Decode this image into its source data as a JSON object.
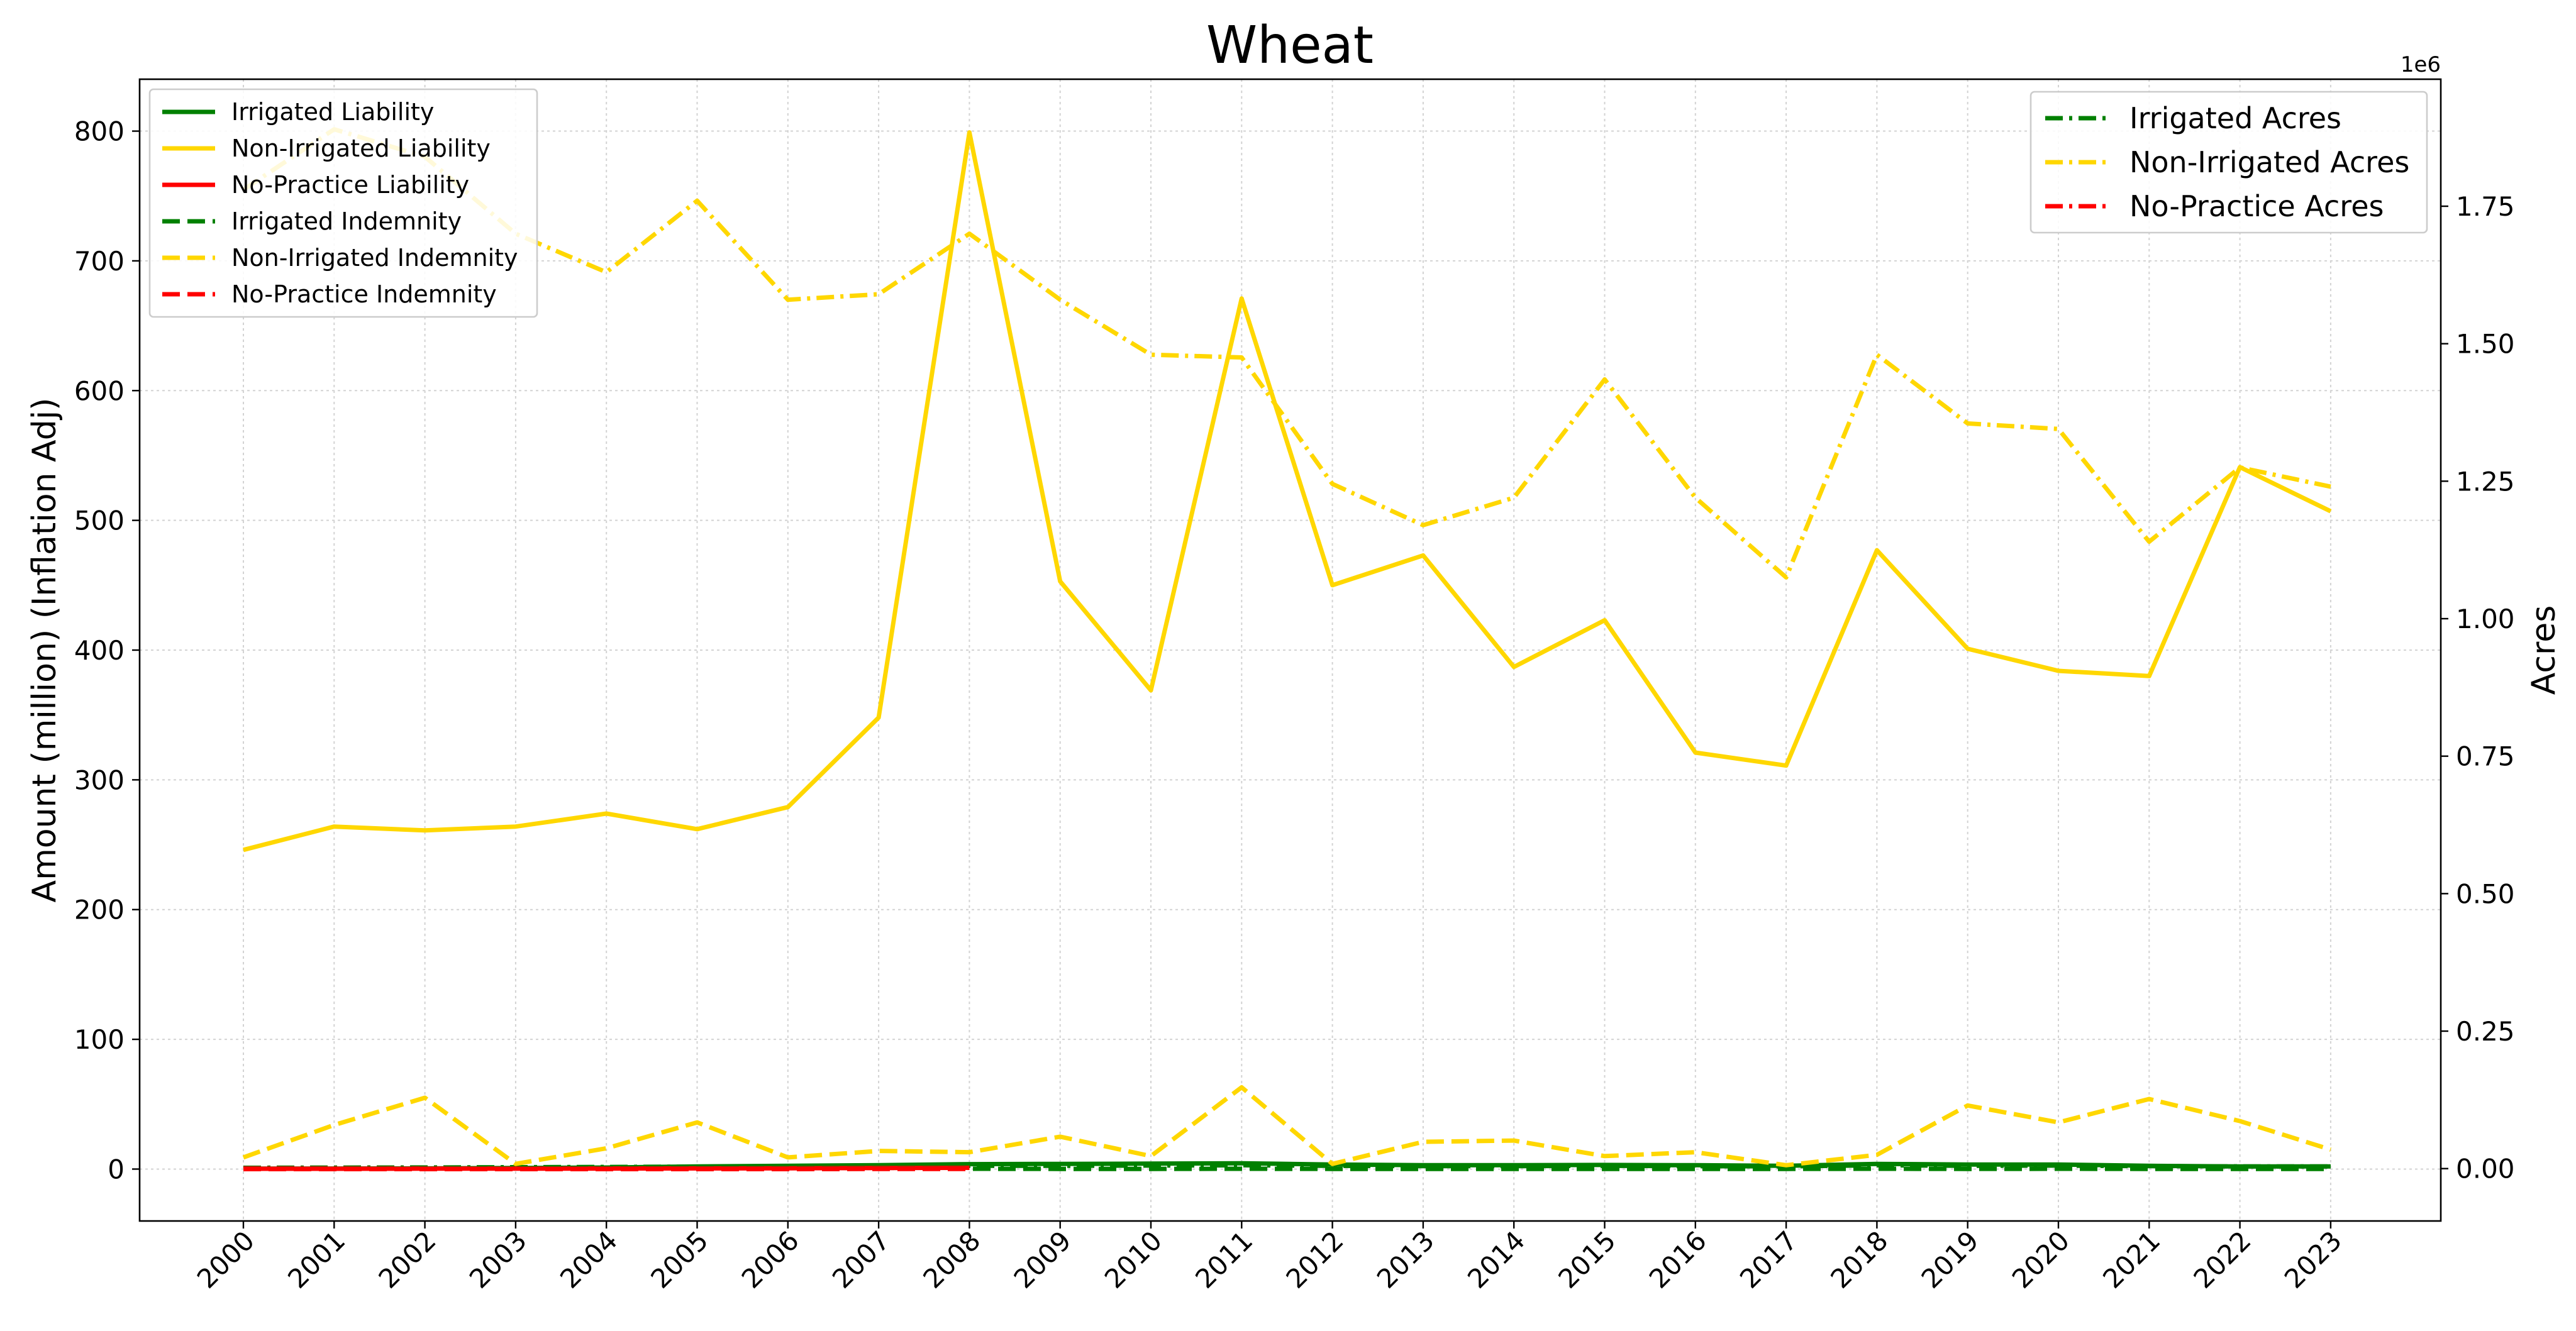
{
  "chart_data": {
    "type": "line",
    "title": "Wheat",
    "xlabel": "",
    "ylabel_left": "Amount (million) (Inflation Adj)",
    "ylabel_right": "Acres",
    "right_offset_label": "1e6",
    "categories": [
      "2000",
      "2001",
      "2002",
      "2003",
      "2004",
      "2005",
      "2006",
      "2007",
      "2008",
      "2009",
      "2010",
      "2011",
      "2012",
      "2013",
      "2014",
      "2015",
      "2016",
      "2017",
      "2018",
      "2019",
      "2020",
      "2021",
      "2022",
      "2023"
    ],
    "ylim_left": [
      -40,
      840
    ],
    "yticks_left": [
      0,
      100,
      200,
      300,
      400,
      500,
      600,
      700,
      800
    ],
    "ylim_right": [
      -95238,
      1980952
    ],
    "yticks_right": [
      0.0,
      250000,
      500000,
      750000,
      1000000,
      1250000,
      1500000,
      1750000
    ],
    "ytick_labels_right": [
      "0.00",
      "0.25",
      "0.50",
      "0.75",
      "1.00",
      "1.25",
      "1.50",
      "1.75"
    ],
    "grid": true,
    "legend_left_placement": "upper-left",
    "legend_right_placement": "upper-right",
    "colors": {
      "irrigated": "#008000",
      "non_irrigated": "#FFD700",
      "no_practice": "#FF0000"
    },
    "series_left": [
      {
        "name": "Irrigated Liability",
        "style": "solid",
        "color": "#008000",
        "values": [
          0.3,
          0.4,
          0.5,
          0.8,
          1.2,
          2.0,
          2.5,
          3.0,
          3.8,
          4.0,
          4.2,
          4.5,
          3.5,
          3.0,
          3.0,
          3.2,
          3.0,
          2.5,
          4.0,
          3.5,
          3.5,
          2.5,
          2.0,
          2.0
        ]
      },
      {
        "name": "Non-Irrigated Liability",
        "style": "solid",
        "color": "#FFD700",
        "values": [
          246,
          264,
          261,
          264,
          274,
          262,
          279,
          348,
          799,
          453,
          369,
          671,
          450,
          473,
          387,
          423,
          321,
          311,
          477,
          401,
          384,
          380,
          541,
          507
        ]
      },
      {
        "name": "No-Practice Liability",
        "style": "solid",
        "color": "#FF0000",
        "values": [
          0.2,
          0.2,
          0.3,
          0.3,
          0.4,
          0.5,
          0.6,
          0.8,
          1.0,
          null,
          null,
          null,
          null,
          null,
          null,
          null,
          null,
          null,
          null,
          null,
          null,
          null,
          null,
          null
        ]
      },
      {
        "name": "Irrigated Indemnity",
        "style": "dashed",
        "color": "#008000",
        "values": [
          0.0,
          0.0,
          0.1,
          0.1,
          0.1,
          0.1,
          0.1,
          0.2,
          0.2,
          0.1,
          0.1,
          0.2,
          0.1,
          0.1,
          0.1,
          0.1,
          0.1,
          0.1,
          0.2,
          0.1,
          0.2,
          0.1,
          0.1,
          0.1
        ]
      },
      {
        "name": "Non-Irrigated Indemnity",
        "style": "dashed",
        "color": "#FFD700",
        "values": [
          9,
          34,
          55,
          4,
          16,
          36,
          9,
          14,
          13,
          25,
          10,
          63,
          4,
          21,
          22,
          10,
          13,
          3,
          11,
          49,
          36,
          54,
          37,
          15
        ]
      },
      {
        "name": "No-Practice Indemnity",
        "style": "dashed",
        "color": "#FF0000",
        "values": [
          0.0,
          0.0,
          0.0,
          0.0,
          0.0,
          0.0,
          0.0,
          0.1,
          0.1,
          null,
          null,
          null,
          null,
          null,
          null,
          null,
          null,
          null,
          null,
          null,
          null,
          null,
          null,
          null
        ]
      }
    ],
    "series_right": [
      {
        "name": "Irrigated Acres",
        "style": "dashdot",
        "color": "#008000",
        "values": [
          1500,
          1800,
          2000,
          2500,
          3000,
          3500,
          4000,
          4500,
          5000,
          5000,
          5500,
          6000,
          5000,
          4500,
          4500,
          5000,
          4500,
          4000,
          6000,
          5000,
          5500,
          4500,
          4000,
          4000
        ]
      },
      {
        "name": "Non-Irrigated Acres",
        "style": "dashdot",
        "color": "#FFD700",
        "values": [
          1780000,
          1890000,
          1840000,
          1700000,
          1630000,
          1760000,
          1580000,
          1590000,
          1700000,
          1580000,
          1480000,
          1475000,
          1245000,
          1170000,
          1220000,
          1435000,
          1220000,
          1075000,
          1480000,
          1355000,
          1345000,
          1140000,
          1275000,
          1240000
        ]
      },
      {
        "name": "No-Practice Acres",
        "style": "dashdot",
        "color": "#FF0000",
        "values": [
          500,
          500,
          600,
          700,
          800,
          900,
          1000,
          1200,
          1500,
          null,
          null,
          null,
          null,
          null,
          null,
          null,
          null,
          null,
          null,
          null,
          null,
          null,
          null,
          null
        ]
      }
    ]
  }
}
